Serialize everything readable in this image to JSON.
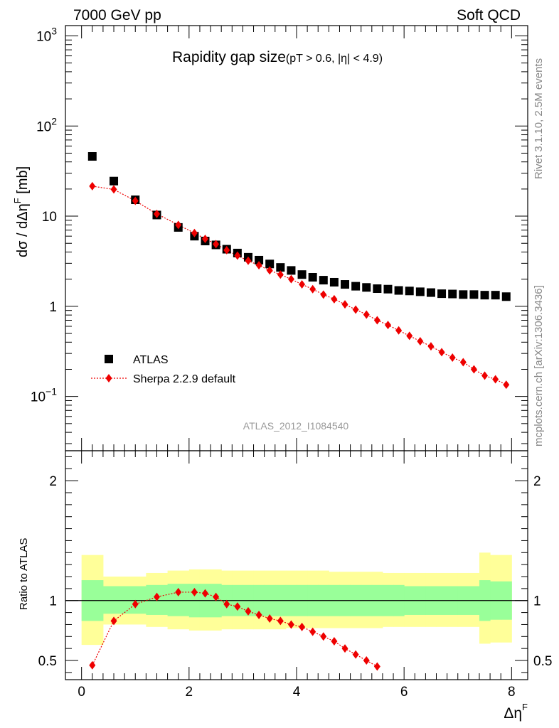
{
  "header": {
    "left": "7000 GeV pp",
    "right": "Soft QCD"
  },
  "side_labels": {
    "top": "Rivet 3.1.10,  2.5M events",
    "bottom": "mcplots.cern.ch [arXiv:1306.3436]"
  },
  "analysis_id": "ATLAS_2012_I1084540",
  "colors": {
    "atlas": "#000000",
    "sherpa": "#ee0000",
    "band_inner": "#99ff99",
    "band_outer": "#ffff99"
  },
  "chart_data": [
    {
      "type": "scatter",
      "panel": "main",
      "title": "Rapidity gap size",
      "title_sub": "(pT > 0.6, |η| < 4.9)",
      "ylabel": "dσ / dΔη",
      "ylabel_sup": "F",
      "ylabel_unit": " [mb]",
      "yscale": "log",
      "xlim": [
        -0.3,
        8.3
      ],
      "ylim": [
        0.025,
        1300
      ],
      "ytick_labels": [
        {
          "v": 0.1,
          "base": "10",
          "exp": "−1"
        },
        {
          "v": 1,
          "base": "1",
          "exp": ""
        },
        {
          "v": 10,
          "base": "10",
          "exp": ""
        },
        {
          "v": 100,
          "base": "10",
          "exp": "2"
        },
        {
          "v": 1000,
          "base": "10",
          "exp": "3"
        }
      ],
      "legend": {
        "position": "bottom-left",
        "entries": [
          "ATLAS",
          "Sherpa 2.2.9 default"
        ]
      },
      "series": [
        {
          "name": "ATLAS",
          "marker": "square",
          "x": [
            0.2,
            0.6,
            1.0,
            1.4,
            1.8,
            2.1,
            2.3,
            2.5,
            2.7,
            2.9,
            3.1,
            3.3,
            3.5,
            3.7,
            3.9,
            4.1,
            4.3,
            4.5,
            4.7,
            4.9,
            5.1,
            5.3,
            5.5,
            5.7,
            5.9,
            6.1,
            6.3,
            6.5,
            6.7,
            6.9,
            7.1,
            7.3,
            7.5,
            7.7,
            7.9
          ],
          "y": [
            46,
            24.5,
            15.2,
            10.3,
            7.5,
            6.0,
            5.3,
            4.8,
            4.3,
            3.9,
            3.5,
            3.25,
            2.95,
            2.7,
            2.5,
            2.25,
            2.1,
            1.95,
            1.85,
            1.75,
            1.67,
            1.62,
            1.57,
            1.55,
            1.5,
            1.48,
            1.45,
            1.42,
            1.38,
            1.37,
            1.35,
            1.35,
            1.33,
            1.33,
            1.28
          ]
        },
        {
          "name": "Sherpa 2.2.9 default",
          "marker": "diamond",
          "x": [
            0.2,
            0.6,
            1.0,
            1.4,
            1.8,
            2.1,
            2.3,
            2.5,
            2.7,
            2.9,
            3.1,
            3.3,
            3.5,
            3.7,
            3.9,
            4.1,
            4.3,
            4.5,
            4.7,
            4.9,
            5.1,
            5.3,
            5.5,
            5.7,
            5.9,
            6.1,
            6.3,
            6.5,
            6.7,
            6.9,
            7.1,
            7.3,
            7.5,
            7.7,
            7.9
          ],
          "y": [
            21.5,
            19.8,
            14.8,
            10.6,
            8.0,
            6.5,
            5.6,
            4.9,
            4.2,
            3.65,
            3.2,
            2.85,
            2.5,
            2.25,
            2.0,
            1.75,
            1.55,
            1.35,
            1.2,
            1.05,
            0.92,
            0.81,
            0.7,
            0.62,
            0.54,
            0.47,
            0.41,
            0.36,
            0.31,
            0.27,
            0.24,
            0.2,
            0.17,
            0.155,
            0.135
          ]
        }
      ]
    },
    {
      "type": "scatter",
      "panel": "ratio",
      "ylabel": "Ratio to ATLAS",
      "xlabel": "Δη",
      "xlabel_sup": "F",
      "xlim": [
        -0.3,
        8.3
      ],
      "ylim": [
        0.34,
        2.25
      ],
      "xtick_labels": [
        "0",
        "2",
        "4",
        "6",
        "8"
      ],
      "ytick_labels": [
        "0.5",
        "1",
        "2"
      ],
      "bands": {
        "edges": [
          0.0,
          0.4,
          0.8,
          1.2,
          1.6,
          2.0,
          2.2,
          2.4,
          2.6,
          2.8,
          3.0,
          3.2,
          3.4,
          3.6,
          3.8,
          4.0,
          4.2,
          4.4,
          4.6,
          4.8,
          5.0,
          5.2,
          5.4,
          5.6,
          5.8,
          6.0,
          6.2,
          6.4,
          6.6,
          6.8,
          7.0,
          7.2,
          7.4,
          7.6,
          7.8,
          8.0
        ],
        "inner_lo": [
          0.83,
          0.89,
          0.89,
          0.88,
          0.87,
          0.86,
          0.86,
          0.86,
          0.87,
          0.87,
          0.87,
          0.87,
          0.87,
          0.87,
          0.87,
          0.87,
          0.87,
          0.87,
          0.87,
          0.87,
          0.87,
          0.87,
          0.87,
          0.87,
          0.87,
          0.88,
          0.88,
          0.88,
          0.88,
          0.88,
          0.88,
          0.88,
          0.83,
          0.84,
          0.84
        ],
        "inner_hi": [
          1.17,
          1.12,
          1.12,
          1.13,
          1.14,
          1.14,
          1.14,
          1.14,
          1.13,
          1.13,
          1.13,
          1.13,
          1.13,
          1.13,
          1.13,
          1.13,
          1.13,
          1.13,
          1.13,
          1.13,
          1.13,
          1.13,
          1.13,
          1.13,
          1.13,
          1.12,
          1.12,
          1.12,
          1.12,
          1.12,
          1.12,
          1.12,
          1.17,
          1.16,
          1.16
        ],
        "outer_lo": [
          0.63,
          0.8,
          0.8,
          0.78,
          0.76,
          0.75,
          0.75,
          0.75,
          0.76,
          0.76,
          0.76,
          0.76,
          0.76,
          0.76,
          0.77,
          0.77,
          0.77,
          0.77,
          0.77,
          0.77,
          0.77,
          0.77,
          0.77,
          0.78,
          0.78,
          0.78,
          0.78,
          0.78,
          0.78,
          0.78,
          0.78,
          0.78,
          0.64,
          0.65,
          0.65
        ],
        "outer_hi": [
          1.38,
          1.2,
          1.2,
          1.23,
          1.25,
          1.26,
          1.26,
          1.26,
          1.25,
          1.25,
          1.25,
          1.25,
          1.25,
          1.25,
          1.25,
          1.25,
          1.25,
          1.25,
          1.24,
          1.24,
          1.24,
          1.24,
          1.24,
          1.23,
          1.23,
          1.23,
          1.23,
          1.23,
          1.23,
          1.23,
          1.23,
          1.23,
          1.4,
          1.38,
          1.38
        ]
      },
      "series": [
        {
          "name": "Sherpa 2.2.9 default",
          "marker": "diamond",
          "x": [
            0.2,
            0.6,
            1.0,
            1.4,
            1.8,
            2.1,
            2.3,
            2.5,
            2.7,
            2.9,
            3.1,
            3.3,
            3.5,
            3.7,
            3.9,
            4.1,
            4.3,
            4.5,
            4.7,
            4.9,
            5.1,
            5.3,
            5.5
          ],
          "y": [
            0.46,
            0.83,
            0.97,
            1.03,
            1.07,
            1.07,
            1.06,
            1.03,
            0.97,
            0.95,
            0.91,
            0.88,
            0.85,
            0.83,
            0.8,
            0.78,
            0.74,
            0.7,
            0.66,
            0.6,
            0.55,
            0.5,
            0.45
          ]
        }
      ]
    }
  ]
}
